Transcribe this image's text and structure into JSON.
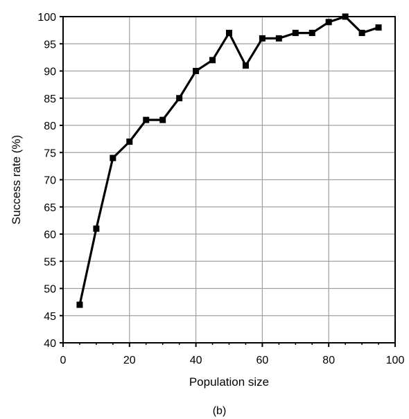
{
  "chart_data": {
    "type": "line",
    "title": "",
    "xlabel": "Population size",
    "ylabel": "Success rate (%)",
    "caption": "(b)",
    "xlim": [
      0,
      100
    ],
    "ylim": [
      40,
      100
    ],
    "x_ticks": [
      0,
      20,
      40,
      60,
      80,
      100
    ],
    "y_ticks": [
      40,
      45,
      50,
      55,
      60,
      65,
      70,
      75,
      80,
      85,
      90,
      95,
      100
    ],
    "x_grid": [
      20,
      40,
      60,
      80
    ],
    "y_grid": [
      45,
      50,
      55,
      60,
      65,
      70,
      75,
      80,
      85,
      90,
      95
    ],
    "grid": true,
    "series": [
      {
        "color": "#000000",
        "marker": "square",
        "points": [
          {
            "x": 5,
            "y": 47
          },
          {
            "x": 10,
            "y": 61
          },
          {
            "x": 15,
            "y": 74
          },
          {
            "x": 20,
            "y": 77
          },
          {
            "x": 25,
            "y": 81
          },
          {
            "x": 30,
            "y": 81
          },
          {
            "x": 35,
            "y": 85
          },
          {
            "x": 40,
            "y": 90
          },
          {
            "x": 45,
            "y": 92
          },
          {
            "x": 50,
            "y": 97
          },
          {
            "x": 55,
            "y": 91
          },
          {
            "x": 60,
            "y": 96
          },
          {
            "x": 65,
            "y": 96
          },
          {
            "x": 70,
            "y": 97
          },
          {
            "x": 75,
            "y": 97
          },
          {
            "x": 80,
            "y": 99
          },
          {
            "x": 85,
            "y": 100
          },
          {
            "x": 90,
            "y": 97
          },
          {
            "x": 95,
            "y": 98
          }
        ]
      }
    ]
  }
}
